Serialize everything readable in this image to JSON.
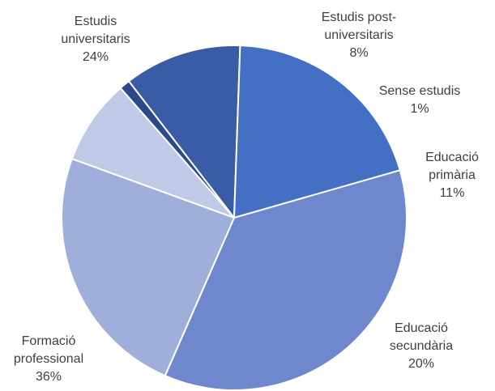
{
  "chart_data": {
    "type": "pie",
    "title": "",
    "slices": [
      {
        "label_lines": [
          "Estudis post-",
          "universitaris"
        ],
        "value": 8,
        "value_label": "8%",
        "color": "#c0c9e6"
      },
      {
        "label_lines": [
          "Sense estudis"
        ],
        "value": 1,
        "value_label": "1%",
        "color": "#2b4a8c"
      },
      {
        "label_lines": [
          "Educació",
          "primària"
        ],
        "value": 11,
        "value_label": "11%",
        "color": "#3a5ba6"
      },
      {
        "label_lines": [
          "Educació",
          "secundària"
        ],
        "value": 20,
        "value_label": "20%",
        "color": "#4470c4"
      },
      {
        "label_lines": [
          "Formació",
          "professional"
        ],
        "value": 36,
        "value_label": "36%",
        "color": "#6f87cc"
      },
      {
        "label_lines": [
          "Estudis",
          "universitaris"
        ],
        "value": 24,
        "value_label": "24%",
        "color": "#a0afd9"
      }
    ]
  }
}
